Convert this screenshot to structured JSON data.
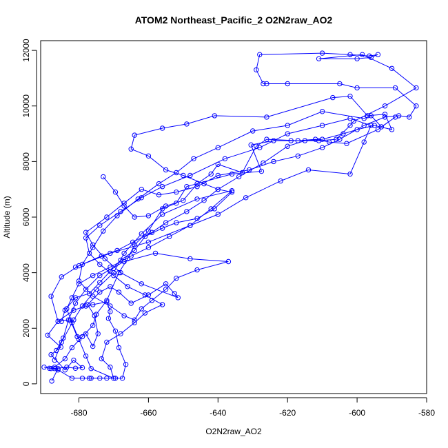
{
  "chart_data": {
    "type": "line",
    "title": "ATOM2 Northeast_Pacific_2 O2N2raw_AO2",
    "xlabel": "O2N2raw_AO2",
    "ylabel": "Altitude (m)",
    "xlim": [
      -691,
      -580
    ],
    "ylim": [
      -350,
      12350
    ],
    "xticks": [
      -680,
      -660,
      -640,
      -620,
      -600,
      -580
    ],
    "yticks": [
      0,
      2000,
      4000,
      6000,
      8000,
      10000,
      12000
    ],
    "grid": false,
    "legend": "none",
    "line_color": "#0000ff",
    "marker": "open-circle",
    "series": [
      {
        "values": [
          [
            -687.8,
            100
          ],
          [
            -686.0,
            550
          ],
          [
            -688.5,
            560
          ],
          [
            -690.0,
            600
          ],
          [
            -687.0,
            550
          ],
          [
            -683.5,
            600
          ],
          [
            -681.0,
            560
          ],
          [
            -679.0,
            580
          ],
          [
            -681.5,
            850
          ],
          [
            -684.0,
            500
          ],
          [
            -688.0,
            1050
          ],
          [
            -685.2,
            1320
          ],
          [
            -689.0,
            1750
          ],
          [
            -686.0,
            2250
          ],
          [
            -682.5,
            2300
          ],
          [
            -680.5,
            1700
          ],
          [
            -678.0,
            1800
          ],
          [
            -676.0,
            1350
          ],
          [
            -674.5,
            1800
          ],
          [
            -675.5,
            2450
          ],
          [
            -677.5,
            2850
          ],
          [
            -674.0,
            3300
          ],
          [
            -671.0,
            3500
          ],
          [
            -668.5,
            3300
          ],
          [
            -665.0,
            2900
          ],
          [
            -660.0,
            3200
          ],
          [
            -655.0,
            3600
          ],
          [
            -652.5,
            3250
          ],
          [
            -651.5,
            3100
          ],
          [
            -662.0,
            3600
          ],
          [
            -668.0,
            4000
          ],
          [
            -672.5,
            4500
          ],
          [
            -676.0,
            5000
          ],
          [
            -678.0,
            5450
          ],
          [
            -672.0,
            6000
          ],
          [
            -667.0,
            6500
          ],
          [
            -662.0,
            7000
          ],
          [
            -657.0,
            6800
          ],
          [
            -652.0,
            6900
          ],
          [
            -646.0,
            7100
          ],
          [
            -640.0,
            7500
          ],
          [
            -631.0,
            7700
          ],
          [
            -624.0,
            8000
          ],
          [
            -617.0,
            8200
          ],
          [
            -610.0,
            8500
          ],
          [
            -605.0,
            8800
          ],
          [
            -598.0,
            9300
          ],
          [
            -592.0,
            9600
          ],
          [
            -588.0,
            9650
          ],
          [
            -585.0,
            9600
          ],
          [
            -583.0,
            10000
          ],
          [
            -589.0,
            10650
          ],
          [
            -600.0,
            10650
          ],
          [
            -605.0,
            10800
          ],
          [
            -620.0,
            10800
          ],
          [
            -626.0,
            10800
          ],
          [
            -627.0,
            10800
          ],
          [
            -629.0,
            11300
          ],
          [
            -628.0,
            11850
          ],
          [
            -610.0,
            11900
          ],
          [
            -602.0,
            11850
          ],
          [
            -596.5,
            11800
          ],
          [
            -594.0,
            11850
          ],
          [
            -596.0,
            11750
          ],
          [
            -600.0,
            11700
          ],
          [
            -611.0,
            11700
          ],
          [
            -598.5,
            11850
          ],
          [
            -590.0,
            11350
          ],
          [
            -583.0,
            10650
          ],
          [
            -592.0,
            10000
          ],
          [
            -601.0,
            9450
          ],
          [
            -602.0,
            9300
          ],
          [
            -606.0,
            8800
          ],
          [
            -611.0,
            8750
          ],
          [
            -619.0,
            8750
          ],
          [
            -624.0,
            8750
          ],
          [
            -630.5,
            8600
          ],
          [
            -627.5,
            7650
          ],
          [
            -636.0,
            7550
          ],
          [
            -649.0,
            7100
          ],
          [
            -652.0,
            6500
          ],
          [
            -656.0,
            6300
          ],
          [
            -660.0,
            5500
          ],
          [
            -664.0,
            5000
          ],
          [
            -666.0,
            4500
          ],
          [
            -668.5,
            4000
          ],
          [
            -672.0,
            3000
          ],
          [
            -675.0,
            2500
          ],
          [
            -676.0,
            2100
          ],
          [
            -679.0,
            1700
          ],
          [
            -682.0,
            1300
          ],
          [
            -684.0,
            900
          ],
          [
            -687.0,
            600
          ],
          [
            -688.0,
            550
          ],
          [
            -686.0,
            500
          ],
          [
            -682.0,
            200
          ],
          [
            -679.0,
            200
          ],
          [
            -677.0,
            200
          ],
          [
            -676.5,
            200
          ],
          [
            -674.0,
            200
          ],
          [
            -672.0,
            200
          ],
          [
            -669.5,
            200
          ],
          [
            -667.5,
            200
          ],
          [
            -666.5,
            700
          ],
          [
            -668.5,
            1300
          ],
          [
            -669.5,
            1900
          ],
          [
            -671.5,
            2350
          ],
          [
            -671.0,
            2600
          ],
          [
            -672.0,
            2950
          ],
          [
            -676.0,
            2850
          ],
          [
            -678.0,
            2800
          ],
          [
            -681.5,
            2650
          ],
          [
            -686.0,
            2250
          ],
          [
            -688.0,
            3150
          ],
          [
            -685.0,
            3850
          ],
          [
            -680.0,
            4250
          ],
          [
            -673.5,
            4600
          ],
          [
            -669.0,
            4800
          ],
          [
            -664.5,
            5100
          ],
          [
            -659.0,
            5450
          ],
          [
            -655.0,
            5800
          ],
          [
            -649.0,
            6200
          ],
          [
            -644.0,
            6600
          ],
          [
            -640.0,
            7000
          ],
          [
            -634.0,
            7450
          ],
          [
            -627.0,
            7950
          ],
          [
            -620.0,
            8550
          ],
          [
            -615.0,
            8750
          ],
          [
            -610.0,
            8800
          ],
          [
            -604.0,
            9000
          ],
          [
            -600.0,
            9150
          ],
          [
            -595.0,
            9300
          ],
          [
            -590.0,
            9150
          ],
          [
            -592.0,
            9700
          ],
          [
            -597.0,
            9650
          ],
          [
            -602.0,
            10350
          ],
          [
            -607.0,
            10300
          ],
          [
            -626.0,
            9600
          ],
          [
            -641.0,
            9650
          ],
          [
            -649.0,
            9350
          ],
          [
            -656.0,
            9200
          ],
          [
            -664.0,
            8950
          ],
          [
            -665.0,
            8450
          ],
          [
            -660.0,
            8200
          ],
          [
            -655.0,
            7700
          ],
          [
            -650.0,
            7500
          ],
          [
            -644.0,
            7200
          ],
          [
            -640.0,
            7000
          ],
          [
            -636.0,
            6900
          ],
          [
            -641.0,
            6300
          ],
          [
            -646.0,
            5950
          ],
          [
            -652.0,
            5800
          ],
          [
            -656.0,
            5600
          ],
          [
            -661.0,
            5300
          ],
          [
            -664.0,
            4800
          ],
          [
            -668.0,
            4450
          ],
          [
            -671.0,
            4050
          ],
          [
            -674.0,
            3650
          ],
          [
            -677.0,
            3250
          ],
          [
            -681.0,
            3100
          ],
          [
            -684.0,
            2650
          ],
          [
            -685.0,
            2250
          ]
        ]
      },
      {
        "values": [
          [
            -681.0,
            4200
          ],
          [
            -671.0,
            4700
          ],
          [
            -660.0,
            5100
          ],
          [
            -648.0,
            5700
          ],
          [
            -640.0,
            6100
          ],
          [
            -632.0,
            6700
          ],
          [
            -622.0,
            7300
          ],
          [
            -614.0,
            7700
          ],
          [
            -602.0,
            7550
          ],
          [
            -598.0,
            8700
          ],
          [
            -596.0,
            9300
          ],
          [
            -602.0,
            9550
          ],
          [
            -610.0,
            9300
          ],
          [
            -620.0,
            9000
          ],
          [
            -628.0,
            8500
          ],
          [
            -638.0,
            8100
          ],
          [
            -648.0,
            7500
          ],
          [
            -656.0,
            7100
          ],
          [
            -662.0,
            6700
          ],
          [
            -668.0,
            6200
          ],
          [
            -674.0,
            5700
          ],
          [
            -678.0,
            5250
          ],
          [
            -677.0,
            4700
          ],
          [
            -674.0,
            4300
          ],
          [
            -670.0,
            3900
          ],
          [
            -666.0,
            3500
          ],
          [
            -661.0,
            3200
          ],
          [
            -656.0,
            2850
          ],
          [
            -661.0,
            2550
          ],
          [
            -664.0,
            2200
          ],
          [
            -668.0,
            1800
          ],
          [
            -672.0,
            1500
          ],
          [
            -673.5,
            900
          ],
          [
            -671.0,
            600
          ],
          [
            -670.0,
            200
          ],
          [
            -676.5,
            550
          ],
          [
            -678.0,
            1000
          ],
          [
            -680.0,
            1600
          ],
          [
            -682.0,
            2200
          ],
          [
            -683.5,
            2700
          ],
          [
            -682.0,
            3100
          ],
          [
            -680.0,
            3600
          ],
          [
            -676.0,
            3900
          ],
          [
            -671.0,
            4200
          ],
          [
            -665.0,
            4600
          ],
          [
            -660.0,
            4900
          ],
          [
            -654.0,
            5300
          ],
          [
            -648.0,
            5700
          ],
          [
            -642.0,
            6300
          ],
          [
            -636.0,
            6950
          ],
          [
            -646.0,
            6650
          ],
          [
            -656.0,
            6100
          ],
          [
            -662.0,
            5400
          ],
          [
            -667.0,
            4700
          ],
          [
            -670.0,
            4000
          ],
          [
            -675.0,
            3400
          ],
          [
            -679.0,
            2800
          ],
          [
            -681.5,
            2300
          ],
          [
            -685.0,
            1500
          ],
          [
            -687.0,
            850
          ]
        ]
      },
      {
        "values": [
          [
            -673.0,
            7450
          ],
          [
            -669.5,
            6900
          ],
          [
            -667.0,
            6400
          ],
          [
            -664.0,
            6000
          ],
          [
            -660.0,
            6050
          ],
          [
            -655.0,
            6400
          ],
          [
            -650.0,
            6600
          ],
          [
            -646.0,
            7200
          ],
          [
            -642.0,
            7550
          ],
          [
            -640.0,
            7900
          ],
          [
            -633.0,
            7600
          ],
          [
            -629.0,
            8550
          ],
          [
            -626.0,
            8800
          ],
          [
            -617.0,
            8750
          ],
          [
            -612.0,
            8800
          ],
          [
            -608.0,
            8700
          ],
          [
            -603.0,
            8650
          ],
          [
            -594.0,
            9150
          ],
          [
            -589.0,
            9600
          ],
          [
            -593.0,
            9250
          ],
          [
            -596.0,
            9650
          ],
          [
            -598.0,
            9550
          ],
          [
            -610.0,
            9800
          ],
          [
            -620.0,
            9300
          ],
          [
            -630.0,
            9100
          ],
          [
            -640.0,
            8500
          ],
          [
            -647.0,
            8100
          ],
          [
            -652.0,
            7600
          ],
          [
            -657.0,
            7200
          ],
          [
            -663.0,
            6650
          ],
          [
            -669.0,
            6050
          ],
          [
            -673.0,
            5500
          ],
          [
            -676.0,
            4900
          ],
          [
            -679.0,
            4300
          ],
          [
            -680.0,
            3700
          ],
          [
            -676.0,
            3150
          ],
          [
            -671.0,
            2800
          ],
          [
            -667.0,
            2450
          ],
          [
            -664.0,
            2300
          ],
          [
            -662.0,
            2700
          ],
          [
            -659.0,
            3000
          ],
          [
            -655.0,
            3400
          ],
          [
            -652.0,
            3800
          ],
          [
            -646.0,
            4100
          ],
          [
            -637.0,
            4400
          ],
          [
            -648.0,
            4500
          ],
          [
            -658.0,
            4700
          ],
          [
            -667.0,
            4400
          ],
          [
            -674.0,
            3900
          ],
          [
            -678.0,
            3400
          ],
          [
            -681.0,
            2900
          ],
          [
            -683.0,
            2300
          ],
          [
            -684.5,
            1650
          ],
          [
            -686.5,
            1200
          ]
        ]
      }
    ]
  }
}
